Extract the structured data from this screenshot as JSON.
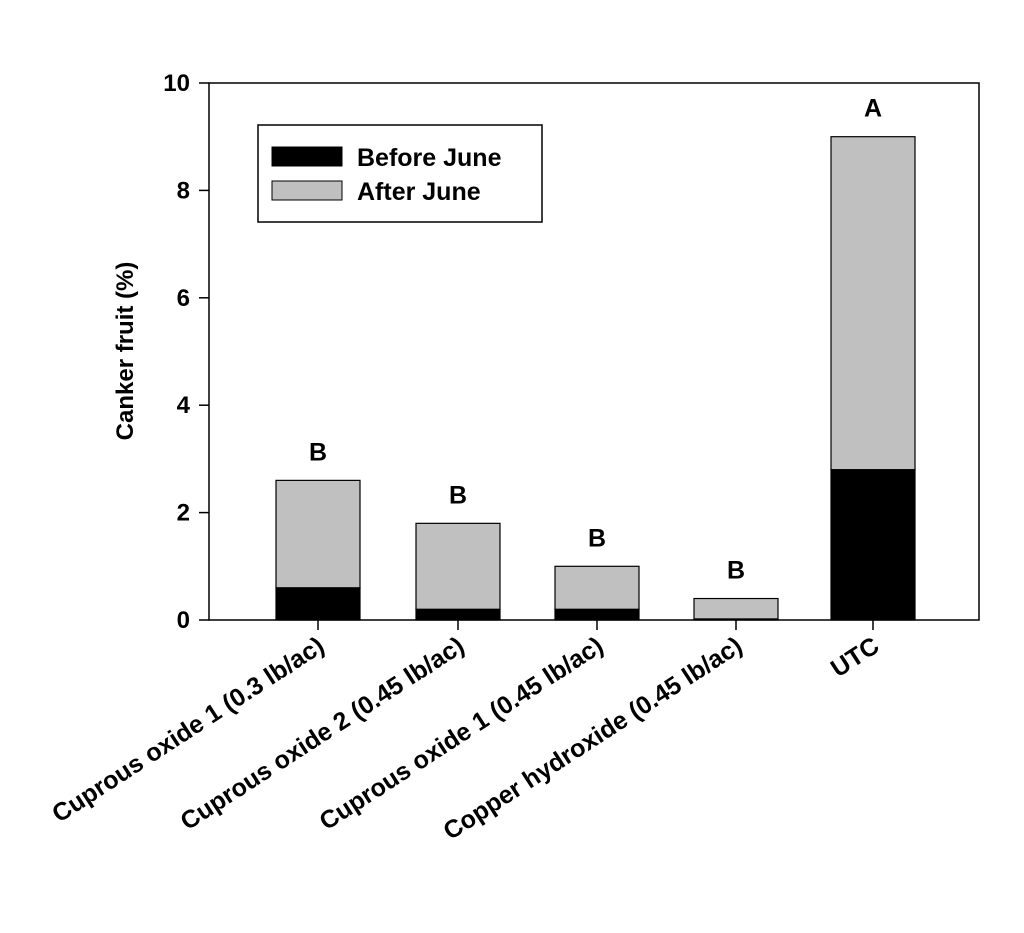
{
  "chart_data": {
    "type": "bar",
    "stacked": true,
    "title": "",
    "xlabel": "",
    "ylabel": "Canker fruit (%)",
    "ylim": [
      0,
      10
    ],
    "yticks": [
      "0",
      "2",
      "4",
      "6",
      "8",
      "10"
    ],
    "grid": false,
    "legend_position": "top-left",
    "categories": [
      "Cuprous oxide 1 (0.3 lb/ac)",
      "Cuprous oxide 2 (0.45 lb/ac)",
      "Cuprous oxide 1 (0.45 lb/ac)",
      "Copper hydroxide (0.45 lb/ac)",
      "UTC"
    ],
    "series": [
      {
        "name": "Before June",
        "color": "#000000",
        "values": [
          0.6,
          0.2,
          0.2,
          0.02,
          2.8
        ]
      },
      {
        "name": "After June",
        "color": "#c0c0c0",
        "values": [
          2.0,
          1.6,
          0.8,
          0.38,
          6.2
        ]
      }
    ],
    "significance_letters": [
      "B",
      "B",
      "B",
      "B",
      "A"
    ]
  }
}
